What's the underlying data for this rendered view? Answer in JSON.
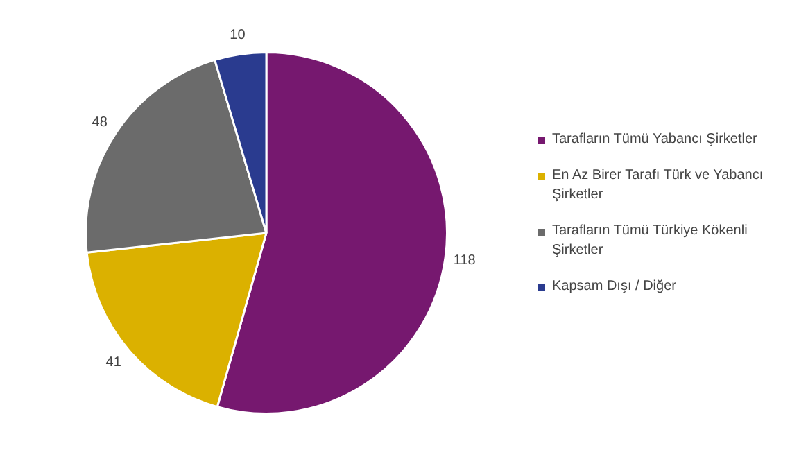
{
  "chart_data": {
    "type": "pie",
    "categories": [
      "Tarafların Tümü Yabancı Şirketler",
      "En Az Birer Tarafı Türk ve Yabancı Şirketler",
      "Tarafların Tümü Türkiye Kökenli Şirketler",
      "Kapsam Dışı / Diğer"
    ],
    "values": [
      118,
      41,
      48,
      10
    ],
    "colors": [
      "#76186f",
      "#dbb100",
      "#6b6b6b",
      "#2a3b8f"
    ],
    "data_labels": true,
    "legend": "right"
  }
}
